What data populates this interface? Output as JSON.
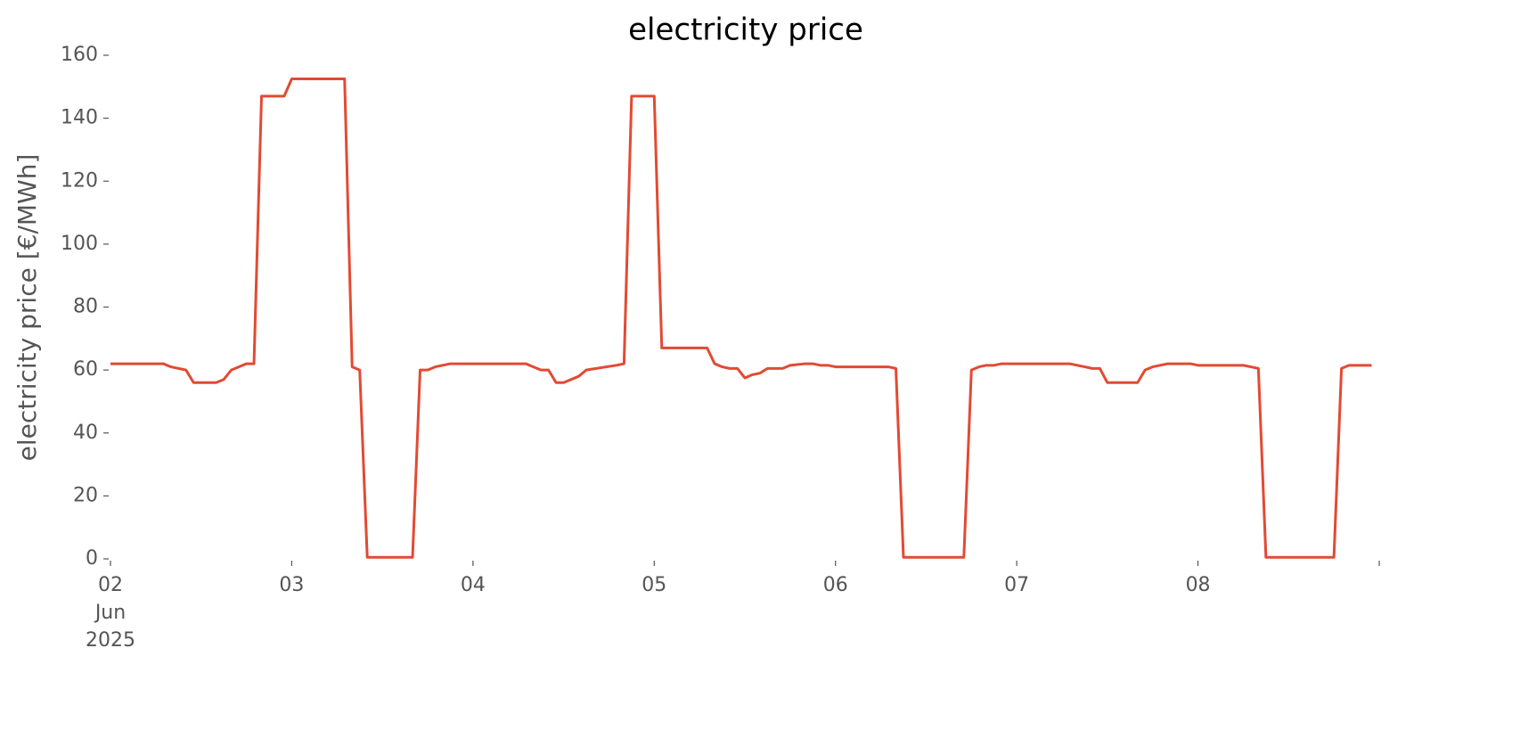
{
  "chart_data": {
    "type": "line",
    "title": "electricity price",
    "y_label": "electricity price [€/MWh]",
    "x": [
      "2025-06-02 00:00",
      "2025-06-02 07:00",
      "2025-06-02 08:00",
      "2025-06-02 10:00",
      "2025-06-02 11:00",
      "2025-06-02 14:00",
      "2025-06-02 15:00",
      "2025-06-02 16:00",
      "2025-06-02 17:00",
      "2025-06-02 18:00",
      "2025-06-02 19:00",
      "2025-06-02 20:00",
      "2025-06-02 23:00",
      "2025-06-03 00:00",
      "2025-06-03 07:00",
      "2025-06-03 08:00",
      "2025-06-03 09:00",
      "2025-06-03 10:00",
      "2025-06-03 16:00",
      "2025-06-03 17:00",
      "2025-06-03 18:00",
      "2025-06-03 19:00",
      "2025-06-03 21:00",
      "2025-06-04 07:00",
      "2025-06-04 08:00",
      "2025-06-04 09:00",
      "2025-06-04 10:00",
      "2025-06-04 11:00",
      "2025-06-04 12:00",
      "2025-06-04 14:00",
      "2025-06-04 15:00",
      "2025-06-04 19:00",
      "2025-06-04 20:00",
      "2025-06-04 21:00",
      "2025-06-05 00:00",
      "2025-06-05 01:00",
      "2025-06-05 07:00",
      "2025-06-05 08:00",
      "2025-06-05 09:00",
      "2025-06-05 10:00",
      "2025-06-05 11:00",
      "2025-06-05 12:00",
      "2025-06-05 13:00",
      "2025-06-05 14:00",
      "2025-06-05 15:00",
      "2025-06-05 17:00",
      "2025-06-05 18:00",
      "2025-06-05 20:00",
      "2025-06-05 21:00",
      "2025-06-05 22:00",
      "2025-06-05 23:00",
      "2025-06-06 00:00",
      "2025-06-06 07:00",
      "2025-06-06 08:00",
      "2025-06-06 09:00",
      "2025-06-06 17:00",
      "2025-06-06 18:00",
      "2025-06-06 19:00",
      "2025-06-06 20:00",
      "2025-06-06 21:00",
      "2025-06-06 22:00",
      "2025-06-07 07:00",
      "2025-06-07 08:00",
      "2025-06-07 09:00",
      "2025-06-07 10:00",
      "2025-06-07 11:00",
      "2025-06-07 12:00",
      "2025-06-07 16:00",
      "2025-06-07 17:00",
      "2025-06-07 18:00",
      "2025-06-07 19:00",
      "2025-06-07 20:00",
      "2025-06-07 23:00",
      "2025-06-08 00:00",
      "2025-06-08 06:00",
      "2025-06-08 07:00",
      "2025-06-08 08:00",
      "2025-06-08 09:00",
      "2025-06-08 18:00",
      "2025-06-08 19:00",
      "2025-06-08 20:00",
      "2025-06-08 23:00"
    ],
    "series": [
      {
        "color": "#e24a33",
        "values": [
          62,
          62,
          61,
          60,
          56,
          56,
          57,
          60,
          61,
          62,
          62,
          147,
          147,
          152.5,
          152.5,
          61,
          60,
          0.5,
          0.5,
          60,
          60,
          61,
          62,
          62,
          61,
          60,
          60,
          56,
          56,
          58,
          60,
          61.5,
          62,
          147,
          147,
          67,
          67,
          62,
          61,
          60.5,
          60.5,
          57.5,
          58.5,
          59,
          60.5,
          60.5,
          61.5,
          62,
          62,
          61.5,
          61.5,
          61,
          61,
          60.5,
          0.5,
          0.5,
          60,
          61,
          61.5,
          61.5,
          62,
          62,
          61.5,
          61,
          60.5,
          60.5,
          56,
          56,
          60,
          61,
          61.5,
          62,
          62,
          61.5,
          61.5,
          61,
          60.5,
          0.5,
          0.5,
          60.5,
          61.5,
          61.5
        ]
      }
    ],
    "xlim": [
      "2025-06-02 00:00",
      "2025-06-09 00:00"
    ],
    "xticks": [
      {
        "value": "2025-06-02 00:00",
        "label": "02\nJun\n2025"
      },
      {
        "value": "2025-06-03 00:00",
        "label": "03"
      },
      {
        "value": "2025-06-04 00:00",
        "label": "04"
      },
      {
        "value": "2025-06-05 00:00",
        "label": "05"
      },
      {
        "value": "2025-06-06 00:00",
        "label": "06"
      },
      {
        "value": "2025-06-07 00:00",
        "label": "07"
      },
      {
        "value": "2025-06-08 00:00",
        "label": "08"
      },
      {
        "value": "2025-06-09 00:00",
        "label": null
      }
    ],
    "ylim": [
      0,
      160
    ],
    "yticks": [
      0,
      20,
      40,
      60,
      80,
      100,
      120,
      140,
      160
    ],
    "grid": false
  }
}
